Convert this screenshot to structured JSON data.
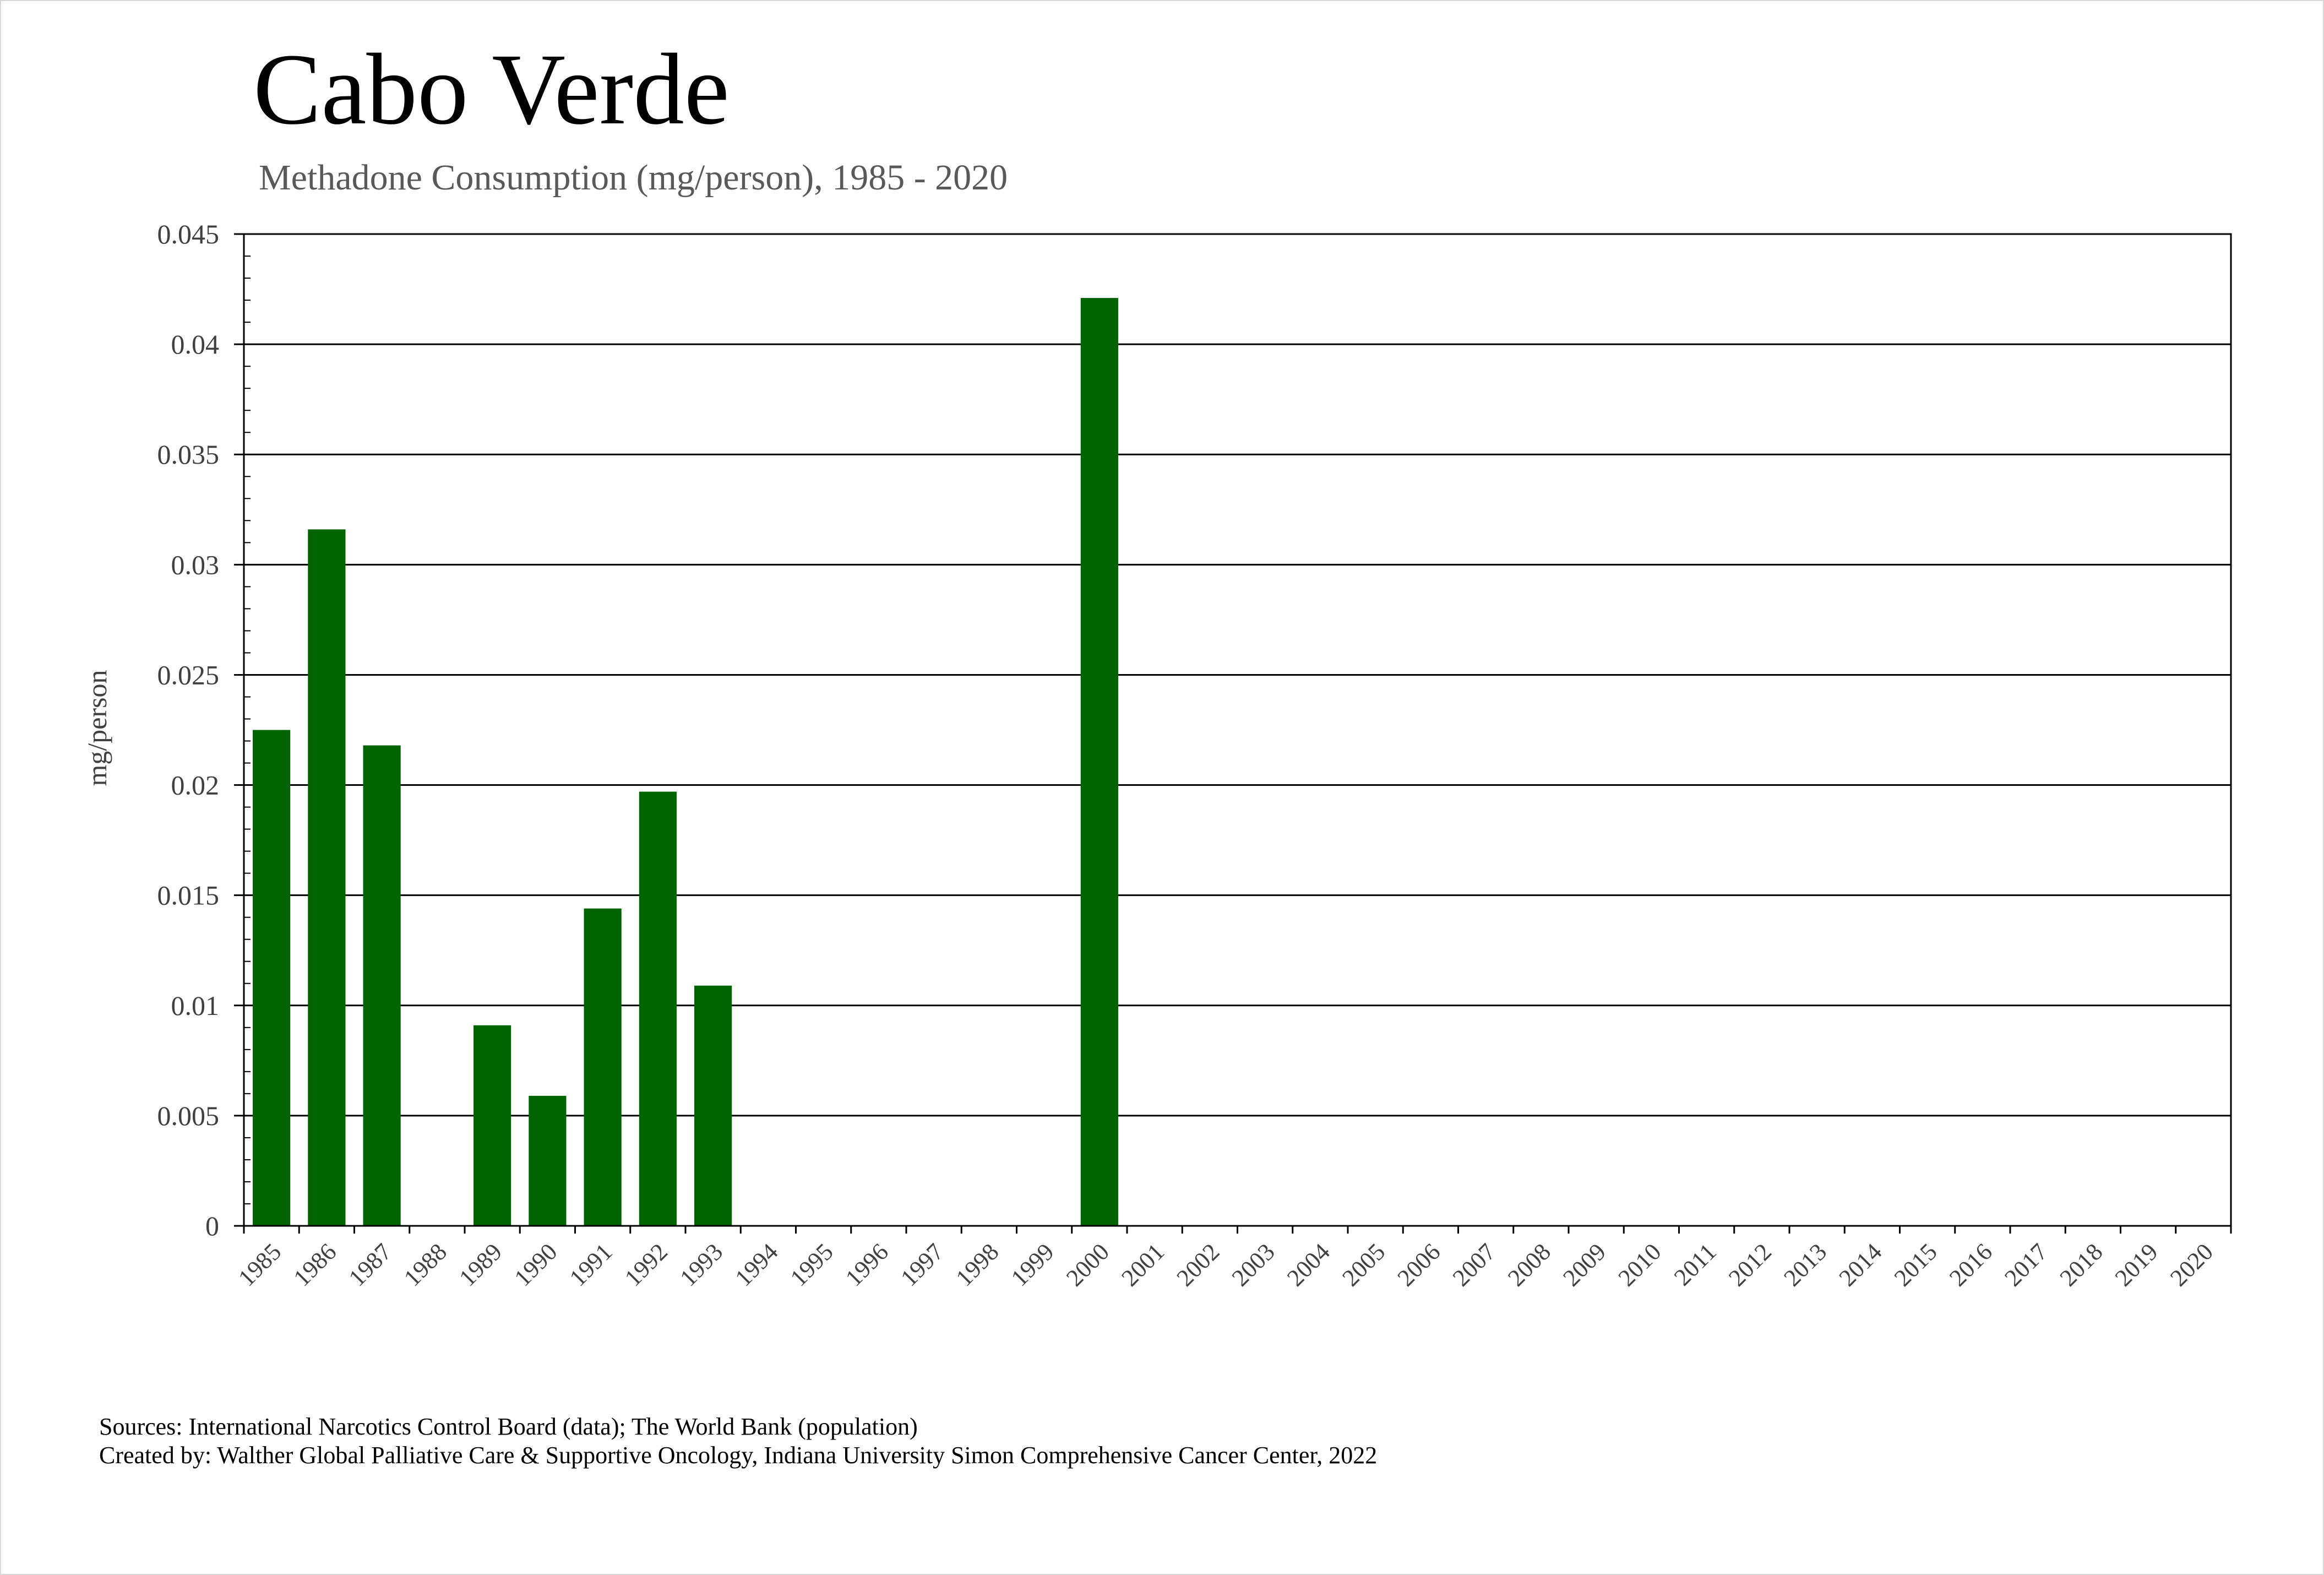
{
  "title": "Cabo Verde",
  "subtitle": "Methadone Consumption (mg/person), 1985 - 2020",
  "footer": {
    "sources": "Sources: International Narcotics Control Board (data); The World Bank (population)",
    "created_by": "Created by: Walther Global Palliative Care & Supportive Oncology, Indiana University Simon Comprehensive Cancer Center, 2022"
  },
  "colors": {
    "bar": "#006400",
    "grid": "#000000",
    "text": "#404040"
  },
  "chart_data": {
    "type": "bar",
    "title": "Cabo Verde",
    "subtitle": "Methadone Consumption (mg/person), 1985 - 2020",
    "xlabel": "",
    "ylabel": "mg/person",
    "ylim": [
      0,
      0.045
    ],
    "yticks": [
      "0",
      "0.005",
      "0.01",
      "0.015",
      "0.02",
      "0.025",
      "0.03",
      "0.035",
      "0.04",
      "0.045"
    ],
    "grid": true,
    "legend": "none",
    "categories": [
      "1985",
      "1986",
      "1987",
      "1988",
      "1989",
      "1990",
      "1991",
      "1992",
      "1993",
      "1994",
      "1995",
      "1996",
      "1997",
      "1998",
      "1999",
      "2000",
      "2001",
      "2002",
      "2003",
      "2004",
      "2005",
      "2006",
      "2007",
      "2008",
      "2009",
      "2010",
      "2011",
      "2012",
      "2013",
      "2014",
      "2015",
      "2016",
      "2017",
      "2018",
      "2019",
      "2020"
    ],
    "values": [
      0.0225,
      0.0316,
      0.0218,
      0,
      0.0091,
      0.0059,
      0.0144,
      0.0197,
      0.0109,
      0,
      0,
      0,
      0,
      0,
      0,
      0.0421,
      0,
      0,
      0,
      0,
      0,
      0,
      0,
      0,
      0,
      0,
      0,
      0,
      0,
      0,
      0,
      0,
      0,
      0,
      0,
      0
    ]
  }
}
